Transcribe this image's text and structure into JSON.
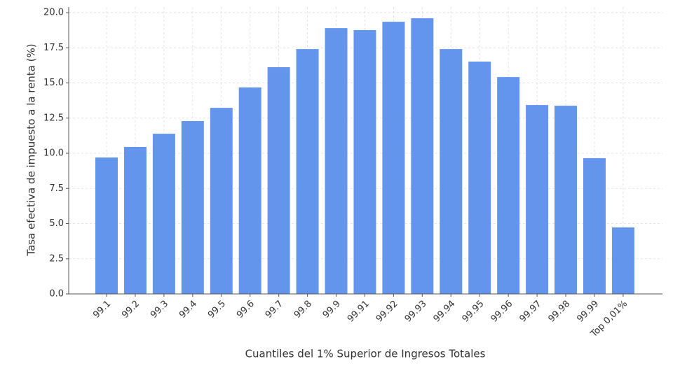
{
  "chart_data": {
    "type": "bar",
    "x_label": "Cuantiles del 1% Superior de Ingresos Totales",
    "y_label": "Tasa efectiva de impuesto a la renta (%)",
    "categories": [
      "99.1",
      "99.2",
      "99.3",
      "99.4",
      "99.5",
      "99.6",
      "99.7",
      "99.8",
      "99.9",
      "99.91",
      "99.92",
      "99.93",
      "99.94",
      "99.95",
      "99.96",
      "99.97",
      "99.98",
      "99.99",
      "Top 0,01%"
    ],
    "values": [
      9.7,
      10.45,
      11.39,
      12.29,
      13.23,
      14.68,
      16.12,
      17.41,
      18.9,
      18.76,
      19.35,
      19.6,
      17.41,
      16.52,
      15.42,
      13.43,
      13.38,
      9.65,
      4.73
    ],
    "color": "#6495ED",
    "ylim": [
      0,
      20.4
    ],
    "yticks": [
      {
        "value": 0,
        "label": "0.0"
      },
      2.5,
      {
        "value": 5,
        "label": "5.0"
      },
      7.5,
      {
        "value": 10,
        "label": "10.0"
      },
      12.5,
      {
        "value": 15,
        "label": "15.0"
      },
      17.5,
      {
        "value": 20,
        "label": "20.0"
      }
    ],
    "grid": true
  }
}
